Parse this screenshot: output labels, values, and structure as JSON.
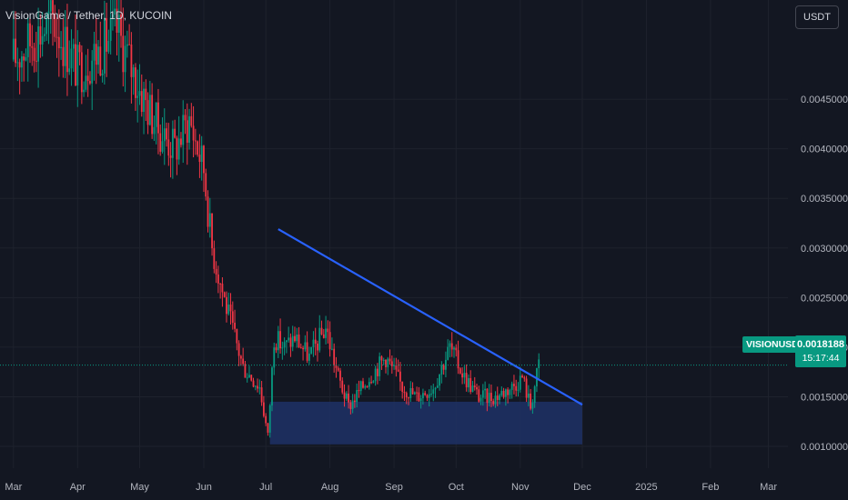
{
  "header": {
    "title": "VisionGame / Tether, 1D, KUCOIN"
  },
  "toolbar": {
    "currency_label": "USDT"
  },
  "last_price": {
    "symbol": "VISIONUSDT",
    "price_label": "0.0018188",
    "countdown": "15:17:44",
    "value": 0.0018188
  },
  "colors": {
    "background": "#131722",
    "grid": "#1e222d",
    "up": "#089981",
    "down": "#f23645",
    "trendline": "#2962ff",
    "zone": "#1e3166",
    "label": "#089981"
  },
  "chart_data": {
    "type": "candlestick",
    "title": "VisionGame / Tether, 1D, KUCOIN",
    "ylim": [
      0.00078,
      0.0055
    ],
    "y_ticks": [
      "0.0045000",
      "0.0040000",
      "0.0035000",
      "0.0030000",
      "0.0025000",
      "0.0020000",
      "0.0015000",
      "0.0010000"
    ],
    "y_tick_values": [
      0.0045,
      0.004,
      0.0035,
      0.003,
      0.0025,
      0.002,
      0.0015,
      0.001
    ],
    "x_ticks": [
      "Mar",
      "Apr",
      "May",
      "Jun",
      "Jul",
      "Aug",
      "Sep",
      "Oct",
      "Nov",
      "Dec",
      "2025",
      "Feb",
      "Mar"
    ],
    "x_tick_dates": [
      "2024-03-01",
      "2024-04-01",
      "2024-05-01",
      "2024-06-01",
      "2024-07-01",
      "2024-08-01",
      "2024-09-01",
      "2024-10-01",
      "2024-11-01",
      "2024-12-01",
      "2025-01-01",
      "2025-02-01",
      "2025-03-01"
    ],
    "grid": true,
    "price_path": [
      [
        "2024-03-01",
        0.0049
      ],
      [
        "2024-03-10",
        0.0051
      ],
      [
        "2024-03-20",
        0.0053
      ],
      [
        "2024-04-01",
        0.0048
      ],
      [
        "2024-04-12",
        0.005
      ],
      [
        "2024-04-20",
        0.0052
      ],
      [
        "2024-05-01",
        0.0046
      ],
      [
        "2024-05-10",
        0.0042
      ],
      [
        "2024-05-18",
        0.004
      ],
      [
        "2024-05-25",
        0.0043
      ],
      [
        "2024-06-01",
        0.0038
      ],
      [
        "2024-06-05",
        0.003
      ],
      [
        "2024-06-12",
        0.0024
      ],
      [
        "2024-06-20",
        0.0018
      ],
      [
        "2024-06-28",
        0.0016
      ],
      [
        "2024-07-02",
        0.0011
      ],
      [
        "2024-07-05",
        0.0021
      ],
      [
        "2024-07-10",
        0.002
      ],
      [
        "2024-07-15",
        0.0021
      ],
      [
        "2024-07-22",
        0.0019
      ],
      [
        "2024-07-30",
        0.0022
      ],
      [
        "2024-08-05",
        0.0017
      ],
      [
        "2024-08-10",
        0.0014
      ],
      [
        "2024-08-20",
        0.0017
      ],
      [
        "2024-08-28",
        0.0019
      ],
      [
        "2024-09-05",
        0.0016
      ],
      [
        "2024-09-12",
        0.0015
      ],
      [
        "2024-09-20",
        0.0016
      ],
      [
        "2024-09-28",
        0.002
      ],
      [
        "2024-10-05",
        0.0017
      ],
      [
        "2024-10-12",
        0.0015
      ],
      [
        "2024-10-20",
        0.0015
      ],
      [
        "2024-10-28",
        0.0016
      ],
      [
        "2024-11-02",
        0.0017
      ],
      [
        "2024-11-06",
        0.0014
      ],
      [
        "2024-11-10",
        0.00182
      ]
    ],
    "trendline": {
      "start": [
        "2024-07-07",
        0.00319
      ],
      "end": [
        "2024-12-01",
        0.00142
      ]
    },
    "support_zone": {
      "from": "2024-07-03",
      "to": "2024-12-01",
      "low": 0.00102,
      "high": 0.00145
    }
  }
}
